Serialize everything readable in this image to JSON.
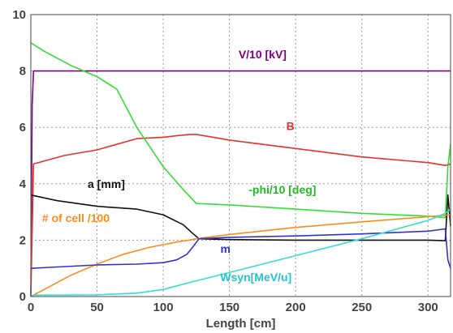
{
  "chart_data": {
    "type": "line",
    "title": "",
    "xlabel": "Length [cm]",
    "ylabel": "",
    "xlim": [
      0,
      317
    ],
    "ylim": [
      0,
      10
    ],
    "xticks": [
      0,
      50,
      100,
      150,
      200,
      250,
      300
    ],
    "yticks": [
      0,
      2,
      4,
      6,
      8,
      10
    ],
    "grid": true,
    "series": [
      {
        "name": "V/10 [kV]",
        "color": "#800080",
        "points": [
          [
            0,
            0
          ],
          [
            1,
            6.8
          ],
          [
            2,
            8
          ],
          [
            317,
            8
          ]
        ]
      },
      {
        "name": "B",
        "color": "#e8302c",
        "points": [
          [
            0,
            0
          ],
          [
            2,
            4.7
          ],
          [
            25,
            5.0
          ],
          [
            50,
            5.2
          ],
          [
            80,
            5.6
          ],
          [
            100,
            5.65
          ],
          [
            110,
            5.7
          ],
          [
            120,
            5.75
          ],
          [
            125,
            5.75
          ],
          [
            150,
            5.55
          ],
          [
            200,
            5.25
          ],
          [
            250,
            4.95
          ],
          [
            300,
            4.75
          ],
          [
            313,
            4.65
          ],
          [
            317,
            4.7
          ]
        ]
      },
      {
        "name": "-phi/10 [deg]",
        "color": "#33dd33",
        "points": [
          [
            0,
            9.0
          ],
          [
            10,
            8.7
          ],
          [
            30,
            8.2
          ],
          [
            50,
            7.8
          ],
          [
            65,
            7.35
          ],
          [
            80,
            6.0
          ],
          [
            100,
            4.6
          ],
          [
            115,
            3.8
          ],
          [
            125,
            3.3
          ],
          [
            150,
            3.25
          ],
          [
            200,
            3.1
          ],
          [
            250,
            2.95
          ],
          [
            300,
            2.85
          ],
          [
            313,
            2.8
          ],
          [
            315,
            4.6
          ],
          [
            317,
            5.4
          ]
        ]
      },
      {
        "name": "a [mm]",
        "color": "#111111",
        "points": [
          [
            0,
            3.6
          ],
          [
            20,
            3.4
          ],
          [
            50,
            3.2
          ],
          [
            80,
            3.1
          ],
          [
            100,
            2.9
          ],
          [
            115,
            2.55
          ],
          [
            122,
            2.25
          ],
          [
            127,
            2.05
          ],
          [
            150,
            2.02
          ],
          [
            200,
            2.0
          ],
          [
            250,
            2.0
          ],
          [
            300,
            2.0
          ],
          [
            313,
            1.98
          ],
          [
            315,
            3.6
          ],
          [
            317,
            2.5
          ]
        ]
      },
      {
        "name": "# of cell /100",
        "color": "#ff8c1a",
        "points": [
          [
            0,
            0
          ],
          [
            10,
            0.25
          ],
          [
            30,
            0.75
          ],
          [
            50,
            1.15
          ],
          [
            70,
            1.5
          ],
          [
            90,
            1.75
          ],
          [
            110,
            1.93
          ],
          [
            130,
            2.08
          ],
          [
            150,
            2.2
          ],
          [
            200,
            2.45
          ],
          [
            250,
            2.65
          ],
          [
            300,
            2.83
          ],
          [
            317,
            2.9
          ]
        ]
      },
      {
        "name": "m",
        "color": "#3333cc",
        "points": [
          [
            0,
            1.0
          ],
          [
            20,
            1.05
          ],
          [
            50,
            1.12
          ],
          [
            80,
            1.15
          ],
          [
            100,
            1.2
          ],
          [
            110,
            1.3
          ],
          [
            118,
            1.5
          ],
          [
            123,
            1.8
          ],
          [
            127,
            2.05
          ],
          [
            150,
            2.1
          ],
          [
            200,
            2.15
          ],
          [
            250,
            2.22
          ],
          [
            300,
            2.32
          ],
          [
            313,
            2.4
          ],
          [
            315,
            1.3
          ],
          [
            317,
            1.0
          ]
        ]
      },
      {
        "name": "Wsyn[MeV/u]",
        "color": "#33dddd",
        "points": [
          [
            0,
            0.05
          ],
          [
            50,
            0.06
          ],
          [
            80,
            0.12
          ],
          [
            100,
            0.25
          ],
          [
            120,
            0.5
          ],
          [
            150,
            0.85
          ],
          [
            200,
            1.45
          ],
          [
            250,
            2.05
          ],
          [
            300,
            2.7
          ],
          [
            313,
            2.95
          ],
          [
            317,
            3.1
          ]
        ]
      }
    ],
    "annotations": [
      {
        "text": "V/10 [kV]",
        "x": 175,
        "y": 8.45,
        "color": "#800080"
      },
      {
        "text": "B",
        "x": 196,
        "y": 5.9,
        "color": "#e8302c"
      },
      {
        "text": "-phi/10 [deg]",
        "x": 190,
        "y": 3.65,
        "color": "#22bb22"
      },
      {
        "text": "a [mm]",
        "x": 57,
        "y": 3.85,
        "color": "#111111"
      },
      {
        "text": "# of cell /100",
        "x": 34,
        "y": 2.65,
        "color": "#ff8c1a"
      },
      {
        "text": "m",
        "x": 147,
        "y": 1.55,
        "color": "#3333cc"
      },
      {
        "text": "Wsyn[MeV/u]",
        "x": 170,
        "y": 0.55,
        "color": "#22c4d4"
      }
    ]
  }
}
